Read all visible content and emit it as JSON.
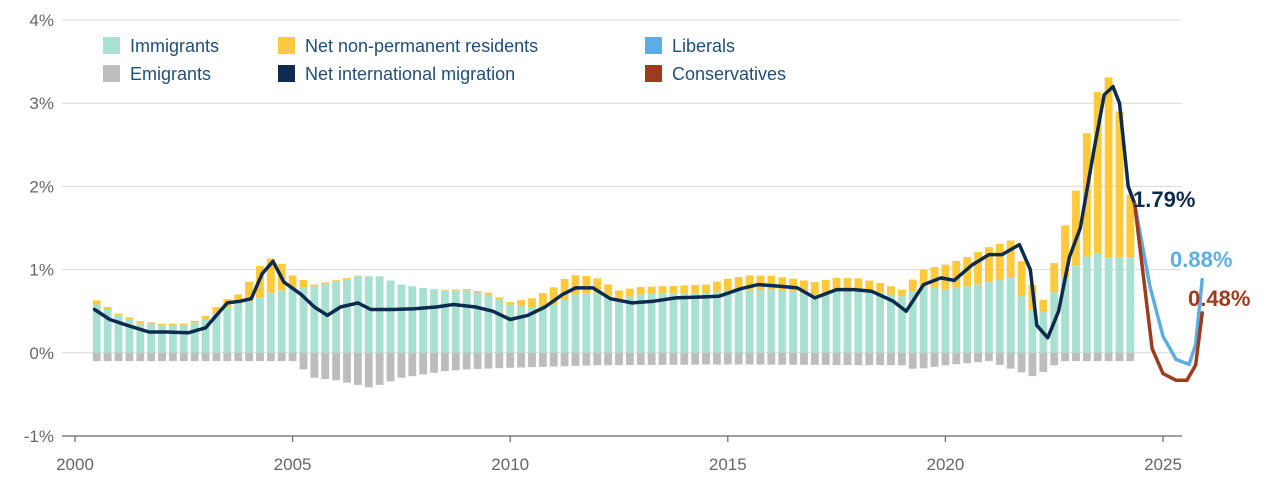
{
  "chart_data": {
    "type": "bar",
    "title": "",
    "xlabel": "",
    "ylabel": "",
    "ylim": [
      -1,
      4
    ],
    "xlim": [
      2000,
      2025.9
    ],
    "y_ticks": [
      "4%",
      "3%",
      "2%",
      "1%",
      "0%",
      "-1%"
    ],
    "y_tick_values": [
      4,
      3,
      2,
      1,
      0,
      -1
    ],
    "x_ticks": [
      "2000",
      "2005",
      "2010",
      "2015",
      "2020",
      "2025"
    ],
    "x_tick_values": [
      2000,
      2005,
      2010,
      2015,
      2020,
      2025
    ],
    "legend_placement": "top-left",
    "legend": [
      {
        "label": "Immigrants",
        "color": "#a8e0d2"
      },
      {
        "label": "Net non-permanent residents",
        "color": "#ffc93c"
      },
      {
        "label": "Liberals",
        "color": "#5dade2"
      },
      {
        "label": "Emigrants",
        "color": "#bdbdbd"
      },
      {
        "label": "Net international migration",
        "color": "#0d2b4e"
      },
      {
        "label": "Conservatives",
        "color": "#9c3b1e"
      }
    ],
    "series": [
      {
        "name": "Immigrants",
        "type": "bar",
        "color": "#a8e0d2",
        "keyframes": [
          [
            2000.5,
            0.58
          ],
          [
            2001,
            0.45
          ],
          [
            2001.5,
            0.36
          ],
          [
            2002,
            0.33
          ],
          [
            2002.5,
            0.33
          ],
          [
            2003,
            0.4
          ],
          [
            2003.5,
            0.55
          ],
          [
            2004,
            0.62
          ],
          [
            2004.5,
            0.72
          ],
          [
            2005,
            0.78
          ],
          [
            2005.5,
            0.8
          ],
          [
            2006,
            0.86
          ],
          [
            2006.5,
            0.92
          ],
          [
            2007,
            0.92
          ],
          [
            2007.5,
            0.82
          ],
          [
            2008,
            0.78
          ],
          [
            2008.5,
            0.75
          ],
          [
            2009,
            0.75
          ],
          [
            2009.5,
            0.7
          ],
          [
            2010,
            0.58
          ],
          [
            2010.5,
            0.55
          ],
          [
            2011,
            0.58
          ],
          [
            2011.5,
            0.7
          ],
          [
            2012,
            0.72
          ],
          [
            2012.5,
            0.65
          ],
          [
            2013,
            0.7
          ],
          [
            2013.5,
            0.72
          ],
          [
            2014,
            0.72
          ],
          [
            2014.5,
            0.72
          ],
          [
            2015,
            0.75
          ],
          [
            2015.5,
            0.75
          ],
          [
            2016,
            0.76
          ],
          [
            2016.5,
            0.74
          ],
          [
            2017,
            0.7
          ],
          [
            2017.5,
            0.75
          ],
          [
            2018,
            0.76
          ],
          [
            2018.5,
            0.72
          ],
          [
            2019,
            0.68
          ],
          [
            2019.5,
            0.8
          ],
          [
            2020,
            0.76
          ],
          [
            2020.5,
            0.8
          ],
          [
            2021,
            0.85
          ],
          [
            2021.5,
            0.9
          ],
          [
            2021.9,
            0.55
          ],
          [
            2022.2,
            0.45
          ],
          [
            2022.6,
            0.82
          ],
          [
            2023,
            1.05
          ],
          [
            2023.4,
            1.22
          ],
          [
            2023.75,
            1.15
          ],
          [
            2024,
            1.15
          ],
          [
            2024.25,
            1.15
          ]
        ]
      },
      {
        "name": "Net non-permanent residents",
        "type": "bar",
        "color": "#ffc93c",
        "keyframes": [
          [
            2000.5,
            0.05
          ],
          [
            2001,
            0.02
          ],
          [
            2002,
            0.02
          ],
          [
            2002.8,
            0.02
          ],
          [
            2003.3,
            0.08
          ],
          [
            2003.8,
            0.12
          ],
          [
            2004.3,
            0.4
          ],
          [
            2004.6,
            0.42
          ],
          [
            2005,
            0.15
          ],
          [
            2005.5,
            0.02
          ],
          [
            2007,
            0
          ],
          [
            2008,
            0
          ],
          [
            2010,
            0.03
          ],
          [
            2010.6,
            0.12
          ],
          [
            2011.2,
            0.25
          ],
          [
            2011.7,
            0.22
          ],
          [
            2012.5,
            0.1
          ],
          [
            2013.5,
            0.08
          ],
          [
            2014.5,
            0.1
          ],
          [
            2015.5,
            0.18
          ],
          [
            2016.5,
            0.15
          ],
          [
            2017.5,
            0.15
          ],
          [
            2018.5,
            0.12
          ],
          [
            2019,
            0.08
          ],
          [
            2019.5,
            0.2
          ],
          [
            2020,
            0.3
          ],
          [
            2020.5,
            0.35
          ],
          [
            2021,
            0.42
          ],
          [
            2021.5,
            0.45
          ],
          [
            2021.9,
            0.4
          ],
          [
            2022.2,
            0.1
          ],
          [
            2022.5,
            0.35
          ],
          [
            2023,
            0.9
          ],
          [
            2023.3,
            1.6
          ],
          [
            2023.6,
            2.1
          ],
          [
            2023.85,
            2.2
          ],
          [
            2024.05,
            1.6
          ],
          [
            2024.25,
            0.75
          ]
        ]
      },
      {
        "name": "Emigrants",
        "type": "bar",
        "color": "#bdbdbd",
        "keyframes": [
          [
            2000.5,
            -0.1
          ],
          [
            2005,
            -0.1
          ],
          [
            2005.5,
            -0.3
          ],
          [
            2006,
            -0.33
          ],
          [
            2006.8,
            -0.42
          ],
          [
            2007.5,
            -0.3
          ],
          [
            2008.5,
            -0.22
          ],
          [
            2009,
            -0.2
          ],
          [
            2010,
            -0.18
          ],
          [
            2012,
            -0.15
          ],
          [
            2015,
            -0.14
          ],
          [
            2019,
            -0.15
          ],
          [
            2019.3,
            -0.2
          ],
          [
            2020,
            -0.15
          ],
          [
            2021,
            -0.1
          ],
          [
            2022,
            -0.28
          ],
          [
            2022.4,
            -0.2
          ],
          [
            2022.6,
            -0.1
          ],
          [
            2024.25,
            -0.1
          ]
        ]
      },
      {
        "name": "Net international migration",
        "type": "line",
        "color": "#0d2b4e",
        "points": [
          [
            2000.45,
            0.52
          ],
          [
            2000.8,
            0.4
          ],
          [
            2001.2,
            0.33
          ],
          [
            2001.7,
            0.25
          ],
          [
            2002.1,
            0.25
          ],
          [
            2002.6,
            0.24
          ],
          [
            2003,
            0.3
          ],
          [
            2003.5,
            0.6
          ],
          [
            2003.8,
            0.62
          ],
          [
            2004.05,
            0.65
          ],
          [
            2004.3,
            0.95
          ],
          [
            2004.55,
            1.1
          ],
          [
            2004.8,
            0.85
          ],
          [
            2005.2,
            0.7
          ],
          [
            2005.5,
            0.55
          ],
          [
            2005.8,
            0.45
          ],
          [
            2006.1,
            0.55
          ],
          [
            2006.5,
            0.6
          ],
          [
            2006.8,
            0.52
          ],
          [
            2007.3,
            0.52
          ],
          [
            2007.8,
            0.53
          ],
          [
            2008.3,
            0.55
          ],
          [
            2008.7,
            0.58
          ],
          [
            2009.2,
            0.55
          ],
          [
            2009.6,
            0.5
          ],
          [
            2010,
            0.4
          ],
          [
            2010.4,
            0.45
          ],
          [
            2010.8,
            0.55
          ],
          [
            2011.2,
            0.7
          ],
          [
            2011.5,
            0.78
          ],
          [
            2011.9,
            0.78
          ],
          [
            2012.3,
            0.65
          ],
          [
            2012.8,
            0.6
          ],
          [
            2013.3,
            0.62
          ],
          [
            2013.8,
            0.66
          ],
          [
            2014.3,
            0.67
          ],
          [
            2014.8,
            0.68
          ],
          [
            2015.3,
            0.77
          ],
          [
            2015.7,
            0.82
          ],
          [
            2016.2,
            0.8
          ],
          [
            2016.6,
            0.78
          ],
          [
            2017,
            0.66
          ],
          [
            2017.5,
            0.76
          ],
          [
            2017.9,
            0.76
          ],
          [
            2018.3,
            0.74
          ],
          [
            2018.8,
            0.62
          ],
          [
            2019.1,
            0.5
          ],
          [
            2019.5,
            0.82
          ],
          [
            2019.9,
            0.9
          ],
          [
            2020.2,
            0.87
          ],
          [
            2020.6,
            1.05
          ],
          [
            2021,
            1.18
          ],
          [
            2021.3,
            1.18
          ],
          [
            2021.7,
            1.3
          ],
          [
            2021.95,
            1.0
          ],
          [
            2022.1,
            0.33
          ],
          [
            2022.35,
            0.18
          ],
          [
            2022.6,
            0.5
          ],
          [
            2022.85,
            1.15
          ],
          [
            2023.1,
            1.5
          ],
          [
            2023.4,
            2.4
          ],
          [
            2023.65,
            3.1
          ],
          [
            2023.85,
            3.2
          ],
          [
            2024.0,
            3.0
          ],
          [
            2024.2,
            2.0
          ],
          [
            2024.35,
            1.79
          ]
        ]
      },
      {
        "name": "Liberals",
        "type": "line",
        "color": "#5dade2",
        "points": [
          [
            2024.35,
            1.79
          ],
          [
            2024.7,
            0.8
          ],
          [
            2025.0,
            0.2
          ],
          [
            2025.3,
            -0.08
          ],
          [
            2025.6,
            -0.14
          ],
          [
            2025.75,
            0.1
          ],
          [
            2025.9,
            0.88
          ]
        ]
      },
      {
        "name": "Conservatives",
        "type": "line",
        "color": "#9c3b1e",
        "points": [
          [
            2024.35,
            1.79
          ],
          [
            2024.75,
            0.05
          ],
          [
            2025.0,
            -0.25
          ],
          [
            2025.3,
            -0.33
          ],
          [
            2025.55,
            -0.33
          ],
          [
            2025.75,
            -0.15
          ],
          [
            2025.9,
            0.48
          ]
        ]
      }
    ],
    "end_labels": [
      {
        "text": "1.79%",
        "color": "#0d2b4e"
      },
      {
        "text": "0.88%",
        "color": "#5dade2"
      },
      {
        "text": "0.48%",
        "color": "#9c3b1e"
      }
    ]
  }
}
